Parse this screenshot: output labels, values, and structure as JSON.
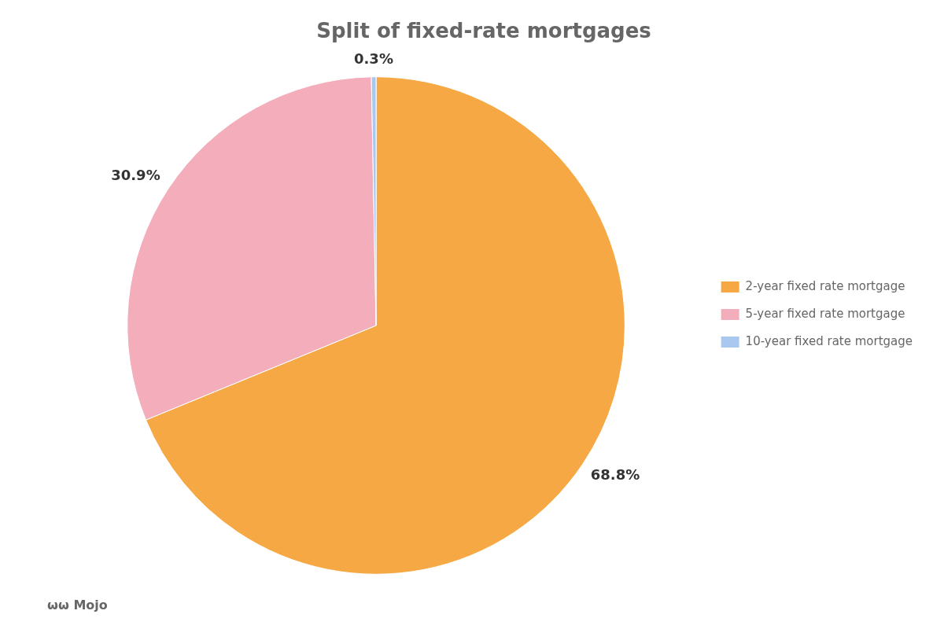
{
  "chart_data": {
    "type": "pie",
    "title": "Split of fixed-rate mortgages",
    "categories": [
      "2-year fixed rate mortgage",
      "5-year fixed rate mortgage",
      "10-year fixed rate mortgage"
    ],
    "values": [
      68.8,
      30.9,
      0.3
    ],
    "value_labels": [
      "68.8%",
      "30.9%",
      "0.3%"
    ],
    "data_labels": true,
    "colors": [
      "#F5A843",
      "#F4ADBB",
      "#A8C8F0"
    ],
    "legend": "right",
    "annotations": [
      "ωω Mojo"
    ]
  }
}
